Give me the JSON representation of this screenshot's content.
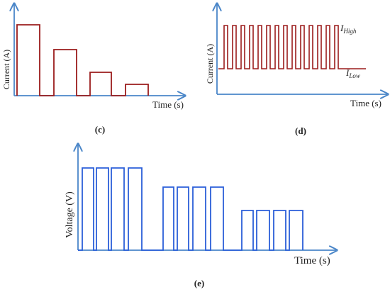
{
  "panels": {
    "c": {
      "label": "(c)",
      "ylabel": "Current (A)",
      "xlabel": "Time (s)"
    },
    "d": {
      "label": "(d)",
      "ylabel": "Current (A)",
      "xlabel": "Time (s)",
      "high_label": "I",
      "high_sub": "High",
      "low_label": "I",
      "low_sub": "Low"
    },
    "e": {
      "label": "(e)",
      "ylabel": "Voltage (V)",
      "xlabel": "Time (s)"
    }
  },
  "colors": {
    "axis": "#4a86c8",
    "current_waveform": "#9b1c1c",
    "voltage_waveform": "#2b5fd9"
  }
}
